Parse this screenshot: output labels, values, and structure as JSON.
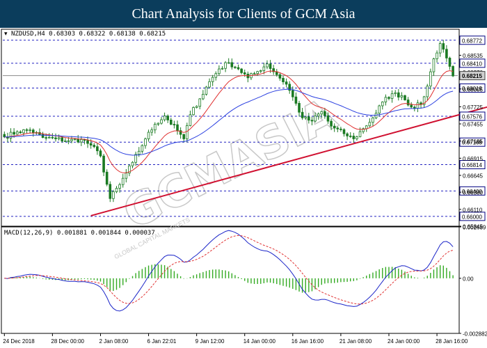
{
  "banner": {
    "title": "Chart Analysis for Clients of GCM Asia"
  },
  "colors": {
    "banner_bg": "#0b3d5c",
    "candle": "#1a7a22",
    "ma_fast": "#e03030",
    "ma_slow": "#2a3fe0",
    "trendline": "#d01030",
    "level": "#2020c0",
    "macd_line": "#1a24c8",
    "signal_line": "#e03030",
    "histogram": "#33aa22"
  },
  "chart_data": [
    {
      "type": "candlestick",
      "info_label": "NZDUSD,H4  0.68303 0.68322 0.68138 0.68215",
      "ylim": [
        0.65845,
        0.68945
      ],
      "y_ticks": [
        "0.68535",
        "0.68270",
        "0.68005",
        "0.67725",
        "0.67455",
        "0.67185",
        "0.66915",
        "0.66645",
        "0.66380",
        "0.66110",
        "0.65845"
      ],
      "y_tick_values": [
        0.68535,
        0.6827,
        0.68005,
        0.67725,
        0.67455,
        0.67185,
        0.66915,
        0.66645,
        0.6638,
        0.6611,
        0.65845
      ],
      "levels": [
        "0.68772",
        "0.68410",
        "0.68019",
        "0.67576",
        "0.67168",
        "0.66814",
        "0.66400",
        "0.66000"
      ],
      "level_values": [
        0.68772,
        0.6841,
        0.68019,
        0.67576,
        0.67168,
        0.66814,
        0.664,
        0.66
      ],
      "current_price": "0.68215",
      "current_price_value": 0.68215,
      "x_labels": [
        "24 Dec 2018",
        "28 Dec 00:00",
        "2 Jan 08:00",
        "6 Jan 22:01",
        "9 Jan 12:00",
        "14 Jan 00:00",
        "16 Jan 16:00",
        "21 Jan 08:00",
        "24 Jan 00:00",
        "28 Jan 16:00"
      ],
      "x_label_bar_index": [
        0,
        15,
        30,
        45,
        60,
        75,
        90,
        105,
        120,
        135
      ],
      "bar_count": 141,
      "anchors": [
        [
          0,
          0.6725
        ],
        [
          4,
          0.6733
        ],
        [
          8,
          0.6736
        ],
        [
          12,
          0.6724
        ],
        [
          16,
          0.6722
        ],
        [
          20,
          0.6719
        ],
        [
          24,
          0.6721
        ],
        [
          27,
          0.6712
        ],
        [
          30,
          0.6695
        ],
        [
          33,
          0.6628
        ],
        [
          36,
          0.665
        ],
        [
          40,
          0.6685
        ],
        [
          44,
          0.6722
        ],
        [
          47,
          0.6745
        ],
        [
          50,
          0.6758
        ],
        [
          54,
          0.6735
        ],
        [
          56,
          0.6722
        ],
        [
          58,
          0.676
        ],
        [
          61,
          0.6785
        ],
        [
          64,
          0.6812
        ],
        [
          67,
          0.6832
        ],
        [
          70,
          0.6842
        ],
        [
          73,
          0.6832
        ],
        [
          76,
          0.6818
        ],
        [
          79,
          0.6828
        ],
        [
          82,
          0.684
        ],
        [
          85,
          0.6823
        ],
        [
          88,
          0.6808
        ],
        [
          90,
          0.6788
        ],
        [
          93,
          0.6755
        ],
        [
          96,
          0.675
        ],
        [
          99,
          0.6765
        ],
        [
          102,
          0.6742
        ],
        [
          106,
          0.673
        ],
        [
          109,
          0.6722
        ],
        [
          112,
          0.6738
        ],
        [
          115,
          0.6755
        ],
        [
          118,
          0.678
        ],
        [
          121,
          0.6793
        ],
        [
          124,
          0.679
        ],
        [
          127,
          0.6772
        ],
        [
          130,
          0.6776
        ],
        [
          132,
          0.6805
        ],
        [
          134,
          0.6848
        ],
        [
          136,
          0.6872
        ],
        [
          137,
          0.6863
        ],
        [
          139,
          0.6836
        ],
        [
          140,
          0.6821
        ]
      ],
      "moving_averages": [
        {
          "color": "#e03030",
          "period": 12
        },
        {
          "color": "#2a3fe0",
          "period": 40
        }
      ],
      "trendline": {
        "start": [
          27,
          0.6601
        ],
        "end": [
          155,
          0.6778
        ]
      },
      "watermark": "GCMASIA",
      "watermark_sub": "GLOBAL CAPITAL MARKETS"
    },
    {
      "type": "macd",
      "label": "MACD(12,26,9) 0.001881 0.001844 0.000037",
      "ylim": [
        -0.002882,
        0.002689
      ],
      "y_ticks": [
        "0.002689",
        "0.00",
        "-0.002882"
      ],
      "y_tick_values": [
        0.002689,
        0.0,
        -0.002882
      ]
    }
  ]
}
